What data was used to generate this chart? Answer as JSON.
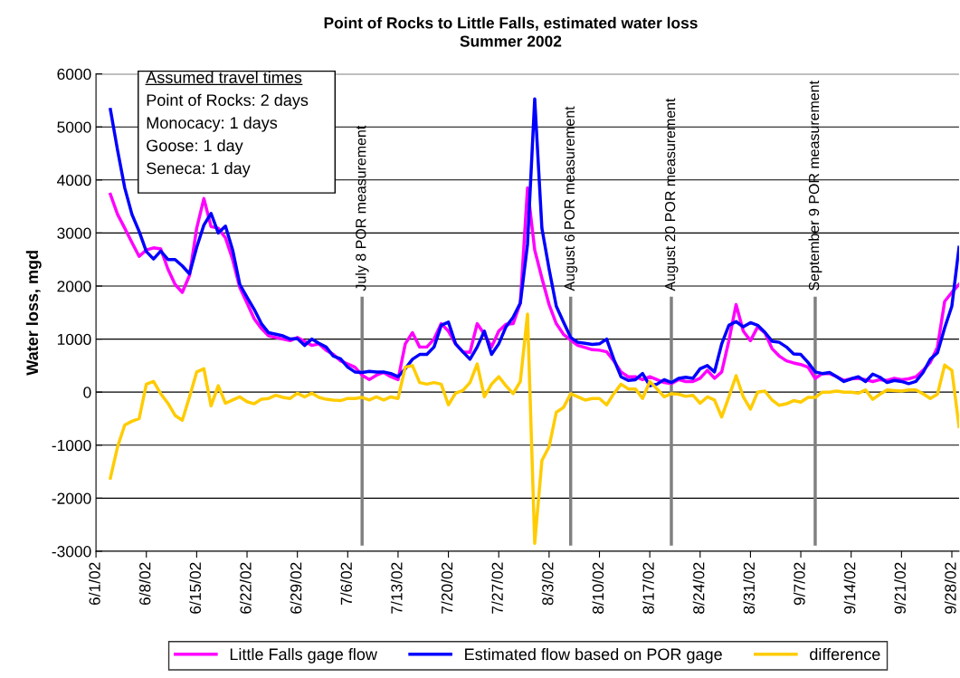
{
  "chart_data": {
    "type": "line",
    "title": "Point of Rocks to Little Falls, estimated water loss",
    "subtitle": "Summer 2002",
    "ylabel": "Water loss, mgd",
    "x": [
      "2002-06-03",
      "2002-06-04",
      "2002-06-05",
      "2002-06-06",
      "2002-06-07",
      "2002-06-08",
      "2002-06-09",
      "2002-06-10",
      "2002-06-11",
      "2002-06-12",
      "2002-06-13",
      "2002-06-14",
      "2002-06-15",
      "2002-06-16",
      "2002-06-17",
      "2002-06-18",
      "2002-06-19",
      "2002-06-20",
      "2002-06-21",
      "2002-06-22",
      "2002-06-23",
      "2002-06-24",
      "2002-06-25",
      "2002-06-26",
      "2002-06-27",
      "2002-06-28",
      "2002-06-29",
      "2002-06-30",
      "2002-07-01",
      "2002-07-02",
      "2002-07-03",
      "2002-07-04",
      "2002-07-05",
      "2002-07-06",
      "2002-07-07",
      "2002-07-08",
      "2002-07-09",
      "2002-07-10",
      "2002-07-11",
      "2002-07-12",
      "2002-07-13",
      "2002-07-14",
      "2002-07-15",
      "2002-07-16",
      "2002-07-17",
      "2002-07-18",
      "2002-07-19",
      "2002-07-20",
      "2002-07-21",
      "2002-07-22",
      "2002-07-23",
      "2002-07-24",
      "2002-07-25",
      "2002-07-26",
      "2002-07-27",
      "2002-07-28",
      "2002-07-29",
      "2002-07-30",
      "2002-07-31",
      "2002-08-01",
      "2002-08-02",
      "2002-08-03",
      "2002-08-04",
      "2002-08-05",
      "2002-08-06",
      "2002-08-07",
      "2002-08-08",
      "2002-08-09",
      "2002-08-10",
      "2002-08-11",
      "2002-08-12",
      "2002-08-13",
      "2002-08-14",
      "2002-08-15",
      "2002-08-16",
      "2002-08-17",
      "2002-08-18",
      "2002-08-19",
      "2002-08-20",
      "2002-08-21",
      "2002-08-22",
      "2002-08-23",
      "2002-08-24",
      "2002-08-25",
      "2002-08-26",
      "2002-08-27",
      "2002-08-28",
      "2002-08-29",
      "2002-08-30",
      "2002-08-31",
      "2002-09-01",
      "2002-09-02",
      "2002-09-03",
      "2002-09-04",
      "2002-09-05",
      "2002-09-06",
      "2002-09-07",
      "2002-09-08",
      "2002-09-09",
      "2002-09-10",
      "2002-09-11",
      "2002-09-12",
      "2002-09-13",
      "2002-09-14",
      "2002-09-15",
      "2002-09-16",
      "2002-09-17",
      "2002-09-18",
      "2002-09-19",
      "2002-09-20",
      "2002-09-21",
      "2002-09-22",
      "2002-09-23",
      "2002-09-24",
      "2002-09-25",
      "2002-09-26",
      "2002-09-27",
      "2002-09-28",
      "2002-09-29"
    ],
    "series": [
      {
        "name": "Little Falls gage flow",
        "color": "#ff00ff",
        "values": [
          3730,
          3350,
          3090,
          2820,
          2560,
          2680,
          2720,
          2700,
          2320,
          2030,
          1880,
          2200,
          3090,
          3650,
          3120,
          3090,
          2910,
          2500,
          1970,
          1680,
          1380,
          1200,
          1060,
          1030,
          1000,
          970,
          1030,
          960,
          880,
          910,
          790,
          710,
          590,
          530,
          470,
          320,
          235,
          320,
          370,
          290,
          235,
          910,
          1120,
          850,
          850,
          1000,
          1290,
          1150,
          910,
          760,
          750,
          1290,
          1090,
          850,
          1150,
          1280,
          1290,
          1680,
          3850,
          2680,
          2150,
          1650,
          1290,
          1090,
          980,
          880,
          840,
          800,
          790,
          760,
          590,
          380,
          290,
          290,
          235,
          290,
          235,
          180,
          160,
          235,
          200,
          200,
          260,
          410,
          260,
          380,
          970,
          1650,
          1150,
          970,
          1230,
          1120,
          820,
          680,
          590,
          550,
          520,
          470,
          260,
          350,
          350,
          290,
          220,
          250,
          260,
          235,
          200,
          235,
          220,
          260,
          235,
          250,
          290,
          410,
          560,
          850,
          1710,
          1880,
          2030
        ]
      },
      {
        "name": "Estimated flow based on POR gage",
        "color": "#0000ff",
        "values": [
          5330,
          4560,
          3850,
          3350,
          3030,
          2650,
          2510,
          2660,
          2500,
          2500,
          2380,
          2230,
          2730,
          3150,
          3370,
          3000,
          3130,
          2680,
          2030,
          1790,
          1560,
          1290,
          1120,
          1090,
          1060,
          1000,
          1010,
          880,
          1000,
          920,
          850,
          680,
          630,
          470,
          380,
          370,
          390,
          380,
          380,
          350,
          290,
          440,
          620,
          710,
          710,
          850,
          1260,
          1320,
          910,
          760,
          620,
          850,
          1150,
          710,
          910,
          1230,
          1410,
          1680,
          2790,
          5530,
          3090,
          2320,
          1620,
          1320,
          1030,
          940,
          920,
          900,
          910,
          1000,
          620,
          290,
          220,
          235,
          350,
          120,
          150,
          235,
          180,
          260,
          280,
          260,
          440,
          500,
          380,
          910,
          1260,
          1330,
          1230,
          1310,
          1260,
          1130,
          960,
          940,
          850,
          720,
          710,
          560,
          380,
          350,
          370,
          290,
          200,
          250,
          290,
          200,
          340,
          280,
          180,
          220,
          200,
          160,
          200,
          370,
          620,
          740,
          1210,
          1620,
          2730
        ]
      },
      {
        "name": "difference",
        "color": "#ffcc00",
        "values": [
          -1620,
          -1030,
          -620,
          -550,
          -500,
          150,
          200,
          -30,
          -210,
          -440,
          -530,
          -90,
          380,
          440,
          -260,
          120,
          -210,
          -150,
          -90,
          -180,
          -220,
          -135,
          -120,
          -60,
          -100,
          -120,
          -20,
          -90,
          -20,
          -100,
          -135,
          -150,
          -160,
          -120,
          -120,
          -100,
          -150,
          -90,
          -150,
          -90,
          -120,
          470,
          500,
          180,
          150,
          180,
          150,
          -240,
          -20,
          30,
          180,
          530,
          -90,
          150,
          290,
          120,
          -30,
          200,
          1470,
          -2850,
          -1290,
          -1030,
          -380,
          -290,
          -30,
          -90,
          -150,
          -120,
          -120,
          -240,
          -30,
          150,
          60,
          60,
          -120,
          200,
          60,
          -90,
          -30,
          -40,
          -80,
          -60,
          -210,
          -90,
          -150,
          -470,
          -90,
          310,
          -90,
          -320,
          0,
          20,
          -150,
          -250,
          -220,
          -160,
          -190,
          -100,
          -100,
          0,
          0,
          20,
          0,
          0,
          -20,
          40,
          -135,
          -40,
          40,
          30,
          20,
          40,
          40,
          -30,
          -120,
          -40,
          510,
          410,
          -650
        ]
      }
    ],
    "xlim": [
      "2002-06-01",
      "2002-09-29"
    ],
    "xticks": [
      {
        "value": "2002-06-01",
        "label": "6/1/02"
      },
      {
        "value": "2002-06-08",
        "label": "6/8/02"
      },
      {
        "value": "2002-06-15",
        "label": "6/15/02"
      },
      {
        "value": "2002-06-22",
        "label": "6/22/02"
      },
      {
        "value": "2002-06-29",
        "label": "6/29/02"
      },
      {
        "value": "2002-07-06",
        "label": "7/6/02"
      },
      {
        "value": "2002-07-13",
        "label": "7/13/02"
      },
      {
        "value": "2002-07-20",
        "label": "7/20/02"
      },
      {
        "value": "2002-07-27",
        "label": "7/27/02"
      },
      {
        "value": "2002-08-03",
        "label": "8/3/02"
      },
      {
        "value": "2002-08-10",
        "label": "8/10/02"
      },
      {
        "value": "2002-08-17",
        "label": "8/17/02"
      },
      {
        "value": "2002-08-24",
        "label": "8/24/02"
      },
      {
        "value": "2002-08-31",
        "label": "8/31/02"
      },
      {
        "value": "2002-09-07",
        "label": "9/7/02"
      },
      {
        "value": "2002-09-14",
        "label": "9/14/02"
      },
      {
        "value": "2002-09-21",
        "label": "9/21/02"
      },
      {
        "value": "2002-09-28",
        "label": "9/28/02"
      }
    ],
    "ylim": [
      -3000,
      6000
    ],
    "yticks": [
      -3000,
      -2000,
      -1000,
      0,
      1000,
      2000,
      3000,
      4000,
      5000,
      6000
    ],
    "grid": "y",
    "legend": "bottom",
    "marker": "none",
    "line_style": "solid",
    "ref_lines": [
      {
        "axis": "x",
        "value": "2002-07-08",
        "label": "July 8 POR measurement",
        "color": "#808080"
      },
      {
        "axis": "x",
        "value": "2002-08-06",
        "label": "August 6 POR measurement",
        "color": "#808080"
      },
      {
        "axis": "x",
        "value": "2002-08-20",
        "label": "August 20 POR measurement",
        "color": "#808080"
      },
      {
        "axis": "x",
        "value": "2002-09-09",
        "label": "September 9 POR measurement",
        "color": "#808080"
      }
    ],
    "annotations": [
      "Assumed travel times",
      "Point of Rocks: 2 days",
      "Monocacy: 1 days",
      "Goose: 1 day",
      "Seneca: 1 day"
    ]
  }
}
